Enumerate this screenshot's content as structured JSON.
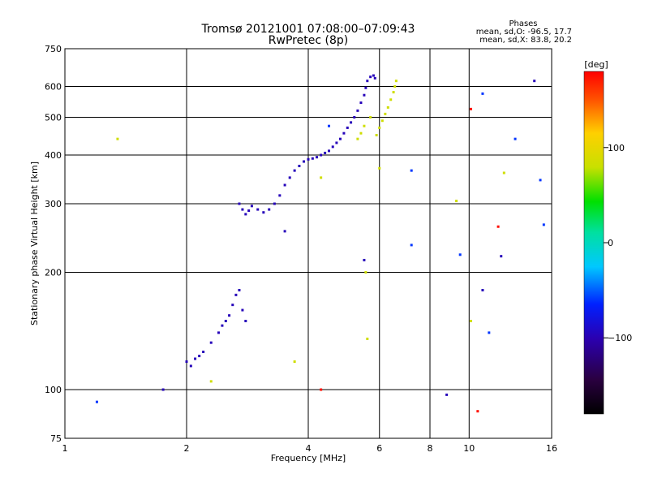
{
  "chart_data": {
    "type": "scatter",
    "title": "Tromsø 20121001 07:08:00–07:09:43",
    "subtitle": "RwPretec (8p)",
    "xlabel": "Frequency [MHz]",
    "ylabel": "Stationary phase Virtual Height [km]",
    "x_scale": "log",
    "y_scale": "log",
    "xlim": [
      1,
      16
    ],
    "ylim": [
      75,
      750
    ],
    "x_ticks": [
      1,
      2,
      4,
      6,
      8,
      10,
      16
    ],
    "x_tick_labels": [
      "1",
      "2",
      "4",
      "6",
      "8",
      "10",
      "16"
    ],
    "y_ticks": [
      75,
      100,
      200,
      300,
      400,
      500,
      600,
      750
    ],
    "y_tick_labels": [
      "75",
      "100",
      "200",
      "300",
      "400",
      "500",
      "600",
      "750"
    ],
    "grid": true,
    "phases_box": {
      "title": "Phases",
      "line_o": "mean, sd,O: -96.5, 17.7",
      "line_x": "mean, sd,X:  83.8, 20.2"
    },
    "colorbar": {
      "label": "[deg]",
      "range": [
        -180,
        180
      ],
      "ticks": [
        100,
        0,
        -100
      ],
      "tick_labels": [
        "100",
        "0",
        "−100"
      ]
    },
    "series": [
      {
        "mode": "O",
        "points": [
          [
            2.7,
            300
          ],
          [
            2.75,
            290
          ],
          [
            2.8,
            282
          ],
          [
            2.85,
            288
          ],
          [
            2.9,
            296
          ],
          [
            3.0,
            290
          ],
          [
            3.1,
            285
          ],
          [
            3.2,
            290
          ],
          [
            3.3,
            300
          ],
          [
            3.4,
            315
          ],
          [
            3.5,
            335
          ],
          [
            3.6,
            350
          ],
          [
            3.7,
            365
          ],
          [
            3.8,
            375
          ],
          [
            3.9,
            385
          ],
          [
            4.0,
            390
          ],
          [
            4.1,
            392
          ],
          [
            4.2,
            395
          ],
          [
            4.3,
            400
          ],
          [
            4.4,
            405
          ],
          [
            4.5,
            410
          ],
          [
            4.6,
            420
          ],
          [
            4.7,
            430
          ],
          [
            4.8,
            440
          ],
          [
            4.9,
            455
          ],
          [
            5.0,
            470
          ],
          [
            5.1,
            485
          ],
          [
            5.2,
            500
          ],
          [
            5.3,
            520
          ],
          [
            5.4,
            545
          ],
          [
            5.5,
            570
          ],
          [
            5.55,
            595
          ],
          [
            5.6,
            620
          ],
          [
            5.7,
            635
          ],
          [
            5.8,
            640
          ],
          [
            5.85,
            630
          ],
          [
            2.0,
            118
          ],
          [
            2.05,
            115
          ],
          [
            2.1,
            120
          ],
          [
            2.15,
            122
          ],
          [
            2.2,
            125
          ],
          [
            2.3,
            132
          ],
          [
            2.4,
            140
          ],
          [
            2.45,
            146
          ],
          [
            2.5,
            150
          ],
          [
            2.55,
            155
          ],
          [
            2.6,
            165
          ],
          [
            2.65,
            175
          ],
          [
            2.7,
            180
          ],
          [
            2.75,
            160
          ],
          [
            2.8,
            150
          ],
          [
            3.5,
            255
          ],
          [
            5.5,
            215
          ],
          [
            1.75,
            100
          ],
          [
            8.8,
            97
          ],
          [
            10.8,
            180
          ],
          [
            12.0,
            220
          ],
          [
            14.5,
            620
          ]
        ],
        "color_phase": -96.5
      },
      {
        "mode": "X",
        "points": [
          [
            5.9,
            450
          ],
          [
            6.0,
            470
          ],
          [
            6.1,
            490
          ],
          [
            6.2,
            510
          ],
          [
            6.3,
            530
          ],
          [
            6.4,
            555
          ],
          [
            6.5,
            580
          ],
          [
            6.55,
            600
          ],
          [
            6.6,
            620
          ],
          [
            5.3,
            440
          ],
          [
            5.4,
            455
          ],
          [
            5.5,
            475
          ],
          [
            5.7,
            500
          ],
          [
            1.35,
            440
          ],
          [
            2.3,
            105
          ],
          [
            3.7,
            118
          ],
          [
            4.3,
            350
          ],
          [
            5.55,
            200
          ],
          [
            5.6,
            135
          ],
          [
            6.0,
            370
          ],
          [
            9.3,
            305
          ],
          [
            12.2,
            360
          ],
          [
            10.1,
            150
          ]
        ],
        "color_phase": 83.8
      },
      {
        "mode": "other",
        "points": [
          [
            4.3,
            100
          ],
          [
            10.1,
            525
          ],
          [
            11.8,
            262
          ],
          [
            10.5,
            88
          ]
        ],
        "color_phase": 175
      },
      {
        "mode": "other",
        "points": [
          [
            1.2,
            93
          ],
          [
            7.2,
            365
          ],
          [
            7.2,
            235
          ],
          [
            9.5,
            222
          ],
          [
            10.8,
            575
          ],
          [
            11.2,
            140
          ],
          [
            13.0,
            440
          ],
          [
            15.0,
            345
          ],
          [
            15.3,
            265
          ],
          [
            4.5,
            475
          ]
        ],
        "color_phase": -60
      }
    ]
  }
}
